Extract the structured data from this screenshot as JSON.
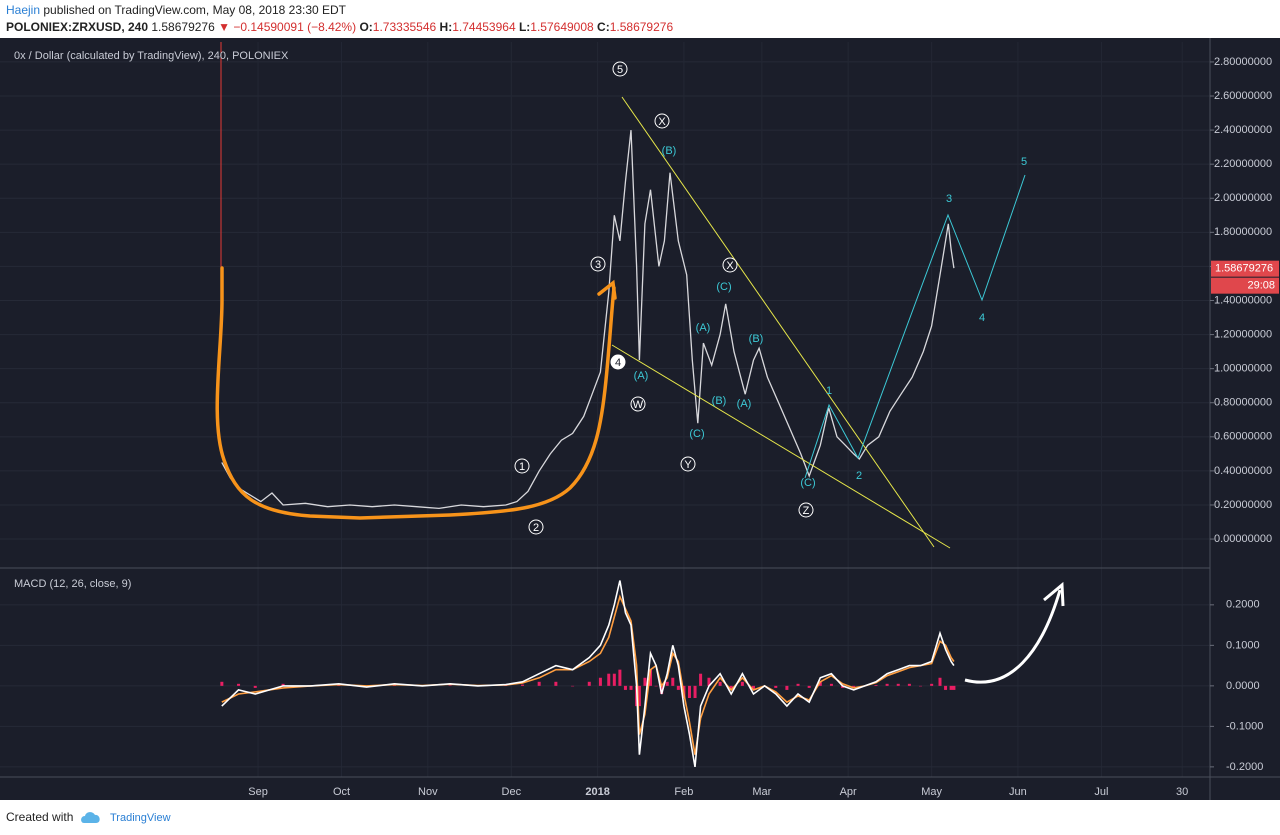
{
  "header": {
    "author": "Haejin",
    "published": "published on TradingView.com, May 08, 2018 23:30 EDT",
    "symbol": "POLONIEX:ZRXUSD, 240",
    "price": "1.58679276",
    "change": "▼ −0.14590091 (−8.42%)",
    "ohlc": [
      {
        "label": "O:",
        "value": "1.73335546"
      },
      {
        "label": "H:",
        "value": "1.74453964"
      },
      {
        "label": "L:",
        "value": "1.57649008"
      },
      {
        "label": "C:",
        "value": "1.58679276"
      }
    ]
  },
  "chart_data": [
    {
      "type": "line",
      "title": "0x / Dollar (calculated by TradingView), 240, POLONIEX",
      "xlim": [
        -61.7,
        373
      ],
      "xticks": [
        {
          "value": 31,
          "label": "Sep"
        },
        {
          "value": 61,
          "label": "Oct"
        },
        {
          "value": 92,
          "label": "Nov"
        },
        {
          "value": 122,
          "label": "Dec"
        },
        {
          "value": 153,
          "label": "2018"
        },
        {
          "value": 184,
          "label": "Feb"
        },
        {
          "value": 212,
          "label": "Mar"
        },
        {
          "value": 243,
          "label": "Apr"
        },
        {
          "value": 273,
          "label": "May"
        },
        {
          "value": 304,
          "label": "Jun"
        },
        {
          "value": 334,
          "label": "Jul"
        },
        {
          "value": 363,
          "label": "30"
        }
      ],
      "ylim": [
        -0.164,
        2.917
      ],
      "yticks": [
        {
          "value": 2.8,
          "label": "2.80000000"
        },
        {
          "value": 2.6,
          "label": "2.60000000"
        },
        {
          "value": 2.4,
          "label": "2.40000000"
        },
        {
          "value": 2.2,
          "label": "2.20000000"
        },
        {
          "value": 2.0,
          "label": "2.00000000"
        },
        {
          "value": 1.8,
          "label": "1.80000000"
        },
        {
          "value": 1.6,
          "label": "1.60000000"
        },
        {
          "value": 1.4,
          "label": "1.40000000"
        },
        {
          "value": 1.2,
          "label": "1.20000000"
        },
        {
          "value": 1.0,
          "label": "1.00000000"
        },
        {
          "value": 0.8,
          "label": "0.80000000"
        },
        {
          "value": 0.6,
          "label": "0.60000000"
        },
        {
          "value": 0.4,
          "label": "0.40000000"
        },
        {
          "value": 0.2,
          "label": "0.20000000"
        },
        {
          "value": 0,
          "label": "0.00000000"
        }
      ],
      "grid": true,
      "x": [
        18,
        21,
        24,
        28,
        32,
        36,
        40,
        48,
        56,
        64,
        72,
        80,
        88,
        96,
        104,
        112,
        120,
        124,
        128,
        132,
        136,
        140,
        144,
        148,
        151,
        154,
        157,
        159,
        161,
        163,
        165,
        167,
        168,
        170,
        172,
        175,
        177,
        179,
        182,
        185,
        187,
        189,
        191,
        194,
        197,
        199,
        202,
        206,
        209,
        211,
        214,
        218,
        222,
        226,
        229,
        233,
        236,
        239,
        242,
        245,
        247,
        250,
        254,
        258,
        262,
        266,
        270,
        273,
        275,
        277,
        279,
        280,
        281
      ],
      "series": [
        {
          "color": "#d8d8dc",
          "values": [
            0.45,
            0.36,
            0.3,
            0.26,
            0.22,
            0.27,
            0.2,
            0.21,
            0.19,
            0.2,
            0.19,
            0.2,
            0.19,
            0.18,
            0.2,
            0.19,
            0.2,
            0.22,
            0.28,
            0.4,
            0.5,
            0.58,
            0.62,
            0.72,
            0.85,
            0.98,
            1.45,
            1.9,
            1.75,
            2.1,
            2.4,
            1.6,
            1.05,
            1.85,
            2.05,
            1.6,
            1.75,
            2.15,
            1.75,
            1.55,
            1.05,
            0.68,
            1.15,
            1.02,
            1.2,
            1.38,
            1.1,
            0.85,
            1.05,
            1.12,
            0.95,
            0.8,
            0.65,
            0.5,
            0.37,
            0.55,
            0.77,
            0.6,
            0.55,
            0.5,
            0.47,
            0.55,
            0.6,
            0.75,
            0.85,
            0.95,
            1.1,
            1.25,
            1.45,
            1.65,
            1.85,
            1.7,
            1.59
          ]
        }
      ],
      "last_price": {
        "value": 1.58679276,
        "label": "1.58679276"
      },
      "countdown": "29:08",
      "circled_labels": [
        "5",
        "X",
        "3",
        "X",
        "4",
        "W",
        "Y",
        "1",
        "2",
        "Z"
      ],
      "subwave_labels": [
        "(B)",
        "(C)",
        "(A)",
        "(B)",
        "(A)",
        "(B)",
        "(A)",
        "(C)",
        "(C)"
      ],
      "wave_count": [
        "5",
        "3",
        "1",
        "4",
        "2"
      ]
    },
    {
      "type": "line",
      "title": "MACD (12, 26, close, 9)",
      "xlim": [
        -61.7,
        373
      ],
      "ylim": [
        -0.225,
        0.286
      ],
      "yticks": [
        {
          "value": 0.2,
          "label": "0.2000"
        },
        {
          "value": 0.1,
          "label": "0.1000"
        },
        {
          "value": 0,
          "label": "0.0000"
        },
        {
          "value": -0.1,
          "label": "-0.1000"
        },
        {
          "value": -0.2,
          "label": "-0.2000"
        }
      ],
      "x": [
        18,
        24,
        30,
        40,
        50,
        60,
        70,
        80,
        90,
        100,
        110,
        120,
        126,
        132,
        138,
        144,
        150,
        154,
        157,
        159,
        161,
        163,
        165,
        167,
        168,
        170,
        172,
        174,
        176,
        178,
        180,
        182,
        184,
        186,
        188,
        190,
        193,
        197,
        201,
        205,
        209,
        213,
        217,
        221,
        225,
        229,
        233,
        237,
        241,
        245,
        249,
        253,
        257,
        261,
        265,
        269,
        273,
        276,
        278,
        280,
        281
      ],
      "series": [
        {
          "type": "bar",
          "color": "#e91e63",
          "values": [
            0.01,
            0.005,
            -0.005,
            0.005,
            0.0,
            0.002,
            -0.003,
            0.002,
            -0.001,
            0.001,
            -0.001,
            0.001,
            0.003,
            0.01,
            0.01,
            0.0,
            0.01,
            0.02,
            0.03,
            0.03,
            0.04,
            -0.01,
            -0.01,
            -0.05,
            -0.05,
            0.02,
            0.04,
            0.0,
            -0.02,
            0.01,
            0.02,
            -0.01,
            -0.03,
            -0.03,
            -0.03,
            0.03,
            0.02,
            0.01,
            -0.01,
            0.01,
            -0.01,
            0.0,
            -0.005,
            -0.01,
            0.005,
            -0.005,
            0.01,
            0.005,
            -0.005,
            -0.005,
            0.0,
            0.002,
            0.005,
            0.005,
            0.005,
            0.0,
            0.005,
            0.02,
            -0.01,
            -0.01,
            -0.01
          ]
        },
        {
          "type": "line",
          "color": "#ff9e40",
          "values": [
            -0.04,
            -0.02,
            -0.015,
            -0.005,
            0.0,
            0.003,
            0.0,
            0.003,
            0.001,
            0.004,
            0.001,
            0.002,
            0.007,
            0.02,
            0.04,
            0.04,
            0.06,
            0.08,
            0.12,
            0.17,
            0.22,
            0.19,
            0.16,
            0.05,
            -0.12,
            -0.07,
            0.04,
            0.05,
            0.0,
            0.02,
            0.08,
            0.06,
            -0.02,
            -0.09,
            -0.17,
            -0.08,
            -0.02,
            0.02,
            -0.01,
            0.02,
            -0.01,
            0.0,
            -0.015,
            -0.04,
            -0.025,
            -0.035,
            0.01,
            0.025,
            0.005,
            -0.005,
            0.0,
            0.008,
            0.025,
            0.035,
            0.045,
            0.05,
            0.055,
            0.11,
            0.1,
            0.07,
            0.06
          ]
        },
        {
          "type": "line",
          "color": "#ffffff",
          "values": [
            -0.05,
            -0.01,
            -0.02,
            0.0,
            0.0,
            0.005,
            -0.003,
            0.005,
            0.0,
            0.005,
            0.0,
            0.003,
            0.01,
            0.03,
            0.05,
            0.04,
            0.07,
            0.1,
            0.15,
            0.2,
            0.26,
            0.18,
            0.15,
            0.0,
            -0.17,
            -0.05,
            0.08,
            0.05,
            -0.02,
            0.03,
            0.1,
            0.05,
            -0.05,
            -0.12,
            -0.2,
            -0.05,
            0.0,
            0.03,
            -0.02,
            0.03,
            -0.02,
            0.0,
            -0.02,
            -0.05,
            -0.02,
            -0.04,
            0.02,
            0.03,
            0.0,
            -0.01,
            0.0,
            0.01,
            0.03,
            0.04,
            0.05,
            0.05,
            0.06,
            0.13,
            0.09,
            0.06,
            0.05
          ]
        }
      ]
    }
  ],
  "footer": {
    "created": "Created with",
    "brand": "TradingView"
  }
}
